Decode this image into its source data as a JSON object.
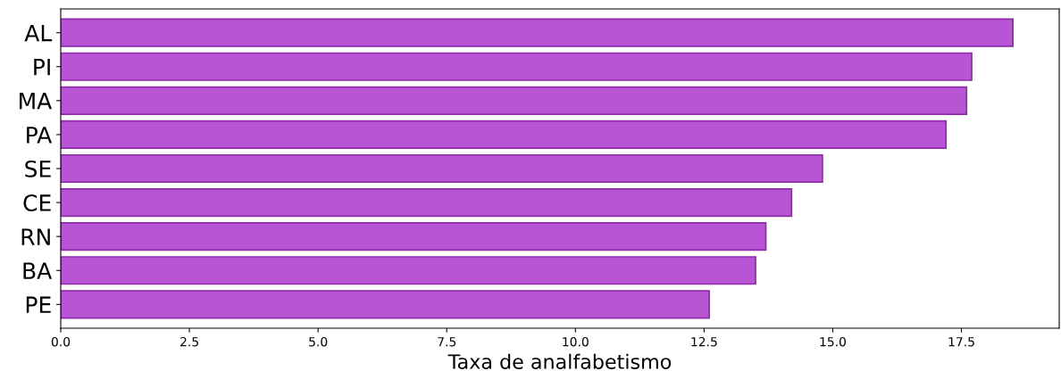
{
  "chart_data": {
    "type": "bar",
    "orientation": "horizontal",
    "xlabel": "Taxa de analfabetismo",
    "categories": [
      "AL",
      "PI",
      "MA",
      "PA",
      "SE",
      "CE",
      "RN",
      "BA",
      "PE"
    ],
    "values": [
      18.5,
      17.7,
      17.6,
      17.2,
      14.8,
      14.2,
      13.7,
      13.5,
      12.6
    ],
    "color": "#b855d4",
    "xlim": [
      0,
      19.4
    ],
    "xticks": [
      {
        "value": 0,
        "label": "0.0"
      },
      2.5,
      {
        "value": 5,
        "label": "5.0"
      },
      7.5,
      {
        "value": 10,
        "label": "10.0"
      },
      12.5,
      {
        "value": 15,
        "label": "15.0"
      },
      17.5
    ],
    "grid": false
  }
}
